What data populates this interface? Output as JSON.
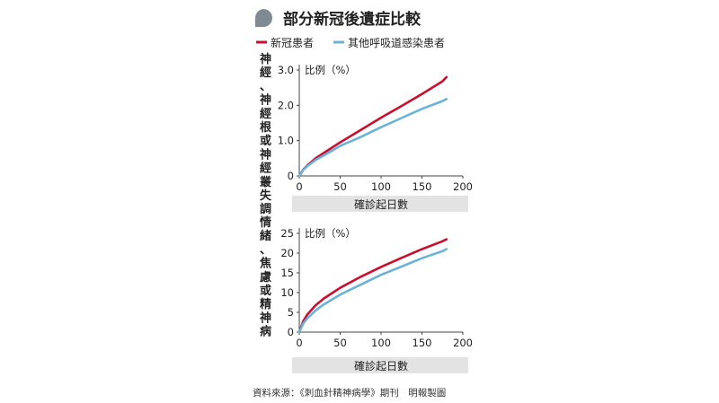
{
  "title": "部分新冠後遺症比較",
  "colors": {
    "covid": "#c8102e",
    "other": "#6bb3d6",
    "band": "#e3e3e3",
    "bubble": "#7f8a95"
  },
  "legend": {
    "items": [
      {
        "label": "新冠患者",
        "color": "#c8102e"
      },
      {
        "label": "其他呼吸道感染患者",
        "color": "#6bb3d6"
      }
    ]
  },
  "source": "資料來源：《刺血針精神病學》期刊　明報製圖",
  "chart_data": [
    {
      "type": "line",
      "title": "神經、神經根或神經叢失調",
      "ylabel": "比例（%）",
      "xlabel": "確診起日數",
      "xlim": [
        0,
        200
      ],
      "ylim": [
        0,
        3.0
      ],
      "xticks": [
        "0",
        "50",
        "100",
        "150",
        "200"
      ],
      "yticks": [
        "0",
        "1.0",
        "2.0",
        "3.0"
      ],
      "ytick_values": [
        0,
        1.0,
        2.0,
        3.0
      ],
      "xtick_values": [
        0,
        50,
        100,
        150,
        200
      ],
      "series": [
        {
          "name": "新冠患者",
          "color": "#c8102e",
          "x": [
            0,
            5,
            10,
            20,
            30,
            50,
            75,
            100,
            125,
            150,
            175,
            180
          ],
          "y": [
            0,
            0.18,
            0.3,
            0.5,
            0.65,
            0.95,
            1.3,
            1.65,
            1.98,
            2.32,
            2.68,
            2.8
          ]
        },
        {
          "name": "其他呼吸道感染患者",
          "color": "#6bb3d6",
          "x": [
            0,
            5,
            10,
            20,
            30,
            50,
            75,
            100,
            125,
            150,
            175,
            180
          ],
          "y": [
            0,
            0.17,
            0.28,
            0.45,
            0.58,
            0.85,
            1.1,
            1.38,
            1.64,
            1.9,
            2.12,
            2.18
          ]
        }
      ]
    },
    {
      "type": "line",
      "title": "情緒、焦慮或精神病",
      "ylabel": "比例（%）",
      "xlabel": "確診起日數",
      "xlim": [
        0,
        200
      ],
      "ylim": [
        0,
        25
      ],
      "xticks": [
        "0",
        "50",
        "100",
        "150",
        "200"
      ],
      "yticks": [
        "0",
        "5",
        "10",
        "15",
        "20",
        "25"
      ],
      "ytick_values": [
        0,
        5,
        10,
        15,
        20,
        25
      ],
      "xtick_values": [
        0,
        50,
        100,
        150,
        200
      ],
      "series": [
        {
          "name": "新冠患者",
          "color": "#c8102e",
          "x": [
            0,
            5,
            10,
            20,
            30,
            50,
            75,
            100,
            125,
            150,
            175,
            180
          ],
          "y": [
            0,
            2.8,
            4.5,
            6.8,
            8.5,
            11.2,
            14.0,
            16.5,
            18.8,
            21.0,
            23.0,
            23.5
          ]
        },
        {
          "name": "其他呼吸道感染患者",
          "color": "#6bb3d6",
          "x": [
            0,
            5,
            10,
            20,
            30,
            50,
            75,
            100,
            125,
            150,
            175,
            180
          ],
          "y": [
            0,
            2.2,
            3.5,
            5.5,
            7.0,
            9.5,
            12.0,
            14.5,
            16.6,
            18.7,
            20.5,
            21.0
          ]
        }
      ]
    }
  ]
}
